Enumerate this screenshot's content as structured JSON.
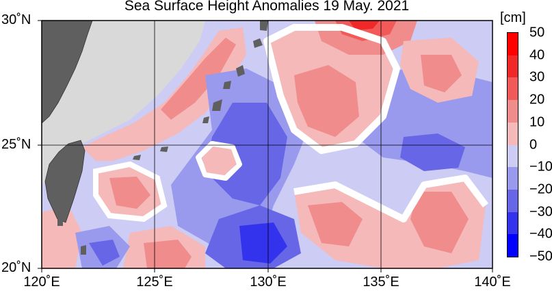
{
  "title": "Sea Surface Height Anomalies  19 May. 2021",
  "lat_labels": [
    "30˚N",
    "25˚N",
    "20˚N"
  ],
  "lon_labels": [
    "120˚E",
    "125˚E",
    "130˚E",
    "135˚E",
    "140˚E"
  ],
  "colorbar": {
    "unit": "[cm]",
    "tick_labels": [
      "50",
      "40",
      "30",
      "20",
      "10",
      "0",
      "−10",
      "−20",
      "−30",
      "−40",
      "−50"
    ],
    "colors": [
      "#ff0000",
      "#f02828",
      "#f25a5a",
      "#f08c8c",
      "#f5b9b9",
      "#ffffff",
      "#ccccf5",
      "#9999ee",
      "#6666e6",
      "#3333ee",
      "#0000ff"
    ]
  },
  "palette": {
    "land": "#5f5f5f",
    "sea_mask": "#d9d9d9",
    "grid": "#000000"
  },
  "map_extent": {
    "lon_min": 120,
    "lon_max": 140,
    "lat_min": 20,
    "lat_max": 30
  }
}
